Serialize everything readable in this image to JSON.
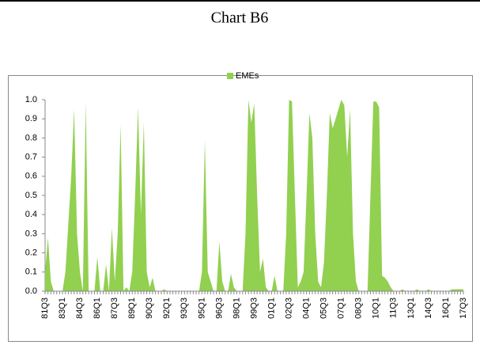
{
  "chart_data": {
    "type": "area",
    "title": "Chart B6",
    "color": "#92d050",
    "series": [
      {
        "name": "EMEs",
        "color": "#92d050",
        "values": [
          0.1,
          0.28,
          0.05,
          0,
          0,
          0,
          0,
          0.1,
          0.35,
          0.6,
          0.95,
          0.3,
          0.1,
          0,
          0.99,
          0,
          0,
          0,
          0.18,
          0,
          0,
          0.14,
          0,
          0.33,
          0.05,
          0.3,
          0.87,
          0,
          0.02,
          0,
          0.1,
          0.5,
          0.96,
          0.4,
          0.88,
          0.1,
          0.02,
          0.07,
          0,
          0,
          0,
          0.01,
          0,
          0,
          0,
          0,
          0,
          0,
          0,
          0,
          0,
          0,
          0,
          0,
          0.1,
          0.79,
          0.1,
          0.05,
          0,
          0,
          0.26,
          0.05,
          0,
          0,
          0.09,
          0.02,
          0,
          0,
          0,
          0.3,
          1.0,
          0.88,
          0.98,
          0.5,
          0.1,
          0.17,
          0.02,
          0,
          0,
          0.08,
          0,
          0,
          0,
          0.3,
          1.0,
          0.99,
          0.5,
          0.02,
          0.05,
          0.1,
          0.5,
          0.93,
          0.8,
          0.3,
          0.05,
          0.02,
          0.15,
          0.5,
          0.93,
          0.85,
          0.9,
          0.95,
          1.0,
          0.97,
          0.7,
          0.95,
          0.3,
          0.05,
          0,
          0,
          0,
          0,
          0.5,
          0.99,
          0.99,
          0.96,
          0.08,
          0.07,
          0.05,
          0.02,
          0,
          0,
          0,
          0.01,
          0,
          0,
          0,
          0,
          0.01,
          0,
          0,
          0,
          0.01,
          0,
          0,
          0,
          0,
          0,
          0,
          0,
          0.01,
          0.01,
          0.01,
          0.01,
          0.01
        ]
      }
    ],
    "categories": [
      "81Q3",
      null,
      null,
      null,
      null,
      null,
      "83Q1",
      null,
      null,
      null,
      null,
      null,
      "84Q3",
      null,
      null,
      null,
      null,
      null,
      "86Q1",
      null,
      null,
      null,
      null,
      null,
      "87Q3",
      null,
      null,
      null,
      null,
      null,
      "89Q1",
      null,
      null,
      null,
      null,
      null,
      "90Q3",
      null,
      null,
      null,
      null,
      null,
      "92Q1",
      null,
      null,
      null,
      null,
      null,
      "93Q3",
      null,
      null,
      null,
      null,
      null,
      "95Q1",
      null,
      null,
      null,
      null,
      null,
      "96Q3",
      null,
      null,
      null,
      null,
      null,
      "98Q1",
      null,
      null,
      null,
      null,
      null,
      "99Q3",
      null,
      null,
      null,
      null,
      null,
      "01Q1",
      null,
      null,
      null,
      null,
      null,
      "02Q3",
      null,
      null,
      null,
      null,
      null,
      "04Q1",
      null,
      null,
      null,
      null,
      null,
      "05Q3",
      null,
      null,
      null,
      null,
      null,
      "07Q1",
      null,
      null,
      null,
      null,
      null,
      "08Q3",
      null,
      null,
      null,
      null,
      null,
      "10Q1",
      null,
      null,
      null,
      null,
      null,
      "11Q3",
      null,
      null,
      null,
      null,
      null,
      "13Q1",
      null,
      null,
      null,
      null,
      null,
      "14Q3",
      null,
      null,
      null,
      null,
      null,
      "16Q1",
      null,
      null,
      null,
      null,
      null,
      "17Q3"
    ],
    "ylim": [
      0,
      1.0
    ],
    "yticks": [
      {
        "value": 0,
        "label": "0.0"
      },
      {
        "value": 0.1,
        "label": "0.1"
      },
      {
        "value": 0.2,
        "label": "0.2"
      },
      {
        "value": 0.3,
        "label": "0.3"
      },
      {
        "value": 0.4,
        "label": "0.4"
      },
      {
        "value": 0.5,
        "label": "0.5"
      },
      {
        "value": 0.6,
        "label": "0.6"
      },
      {
        "value": 0.7,
        "label": "0.7"
      },
      {
        "value": 0.8,
        "label": "0.8"
      },
      {
        "value": 0.9,
        "label": "0.9"
      },
      {
        "value": 1.0,
        "label": "1.0"
      }
    ],
    "legend": "top"
  }
}
